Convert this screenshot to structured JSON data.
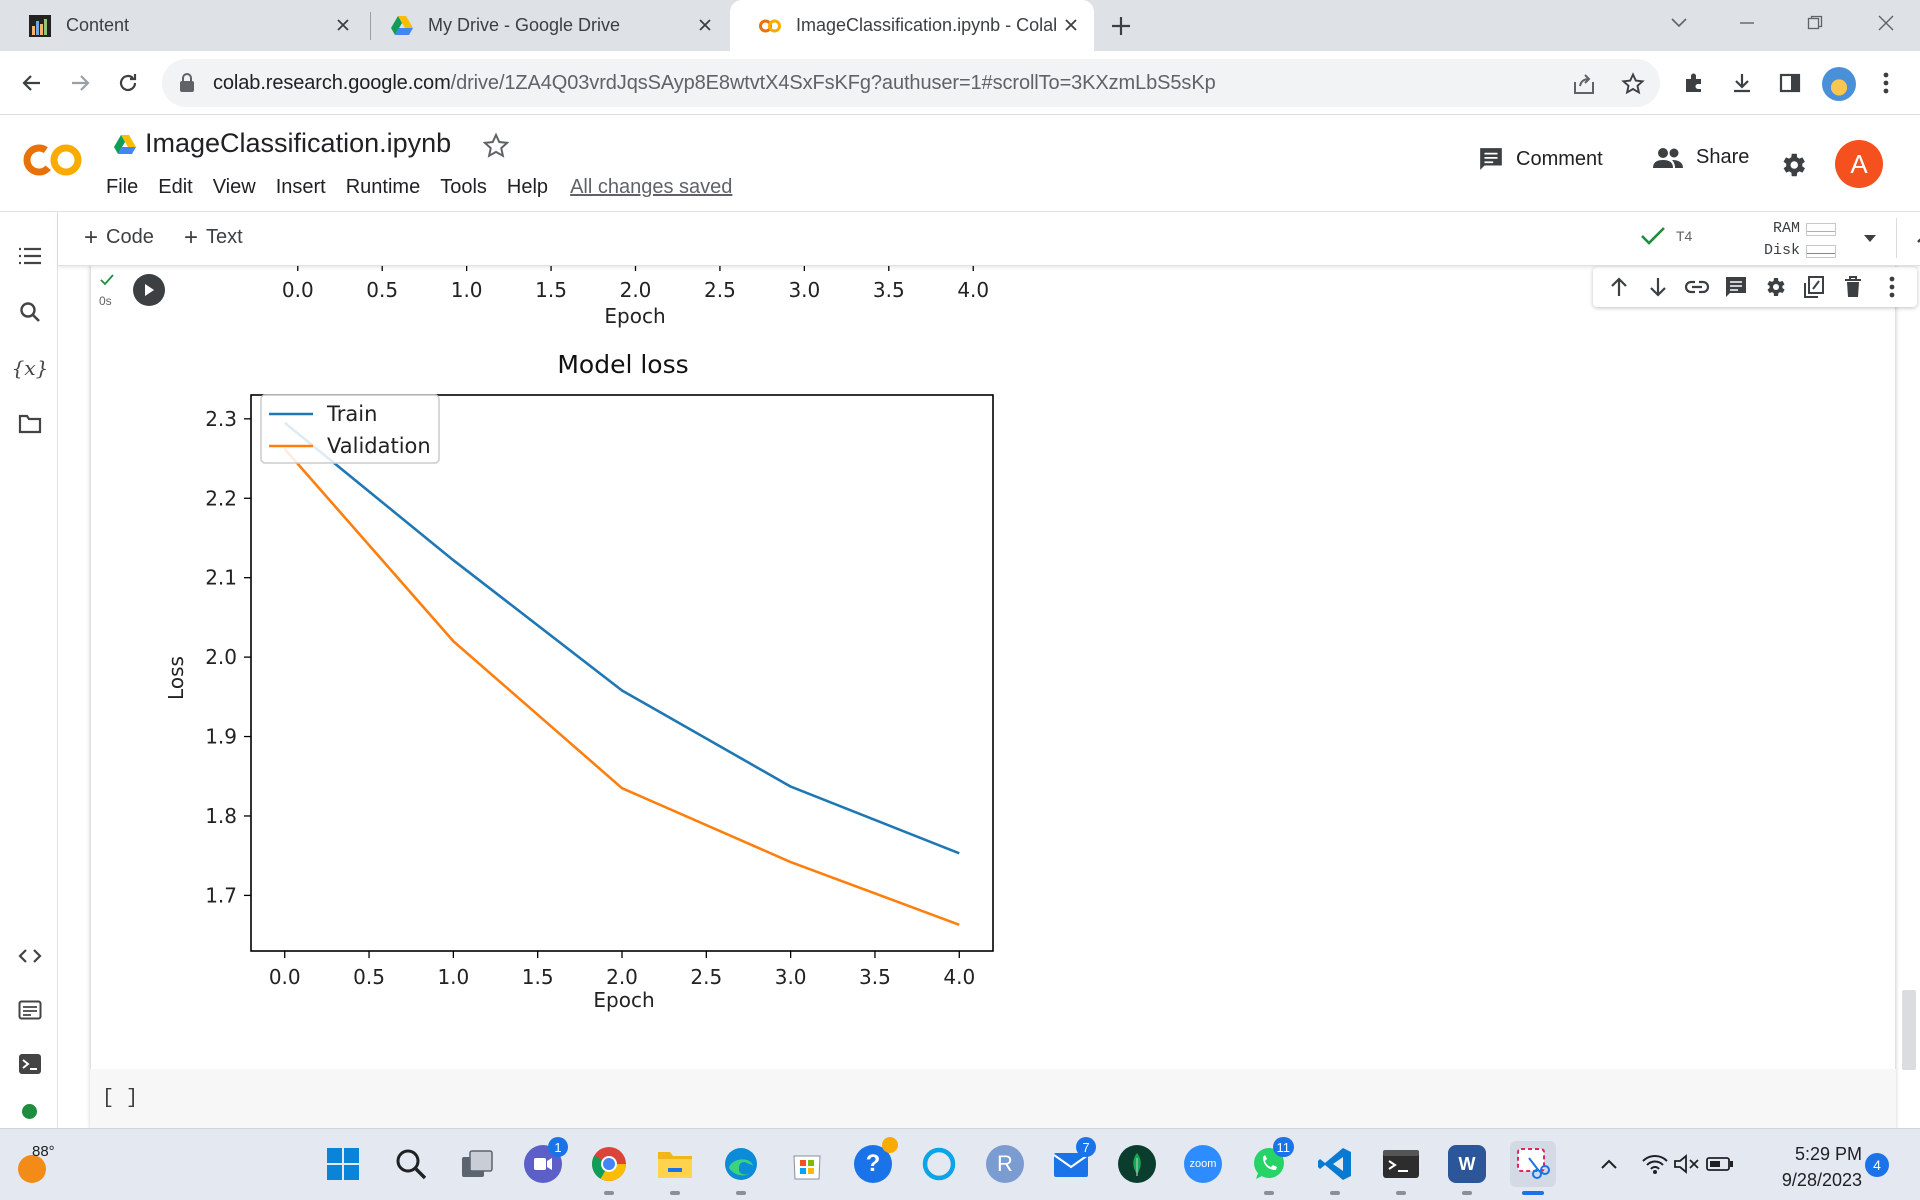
{
  "browser": {
    "tabs": [
      {
        "label": "Content",
        "icon": "bar-chart-favicon"
      },
      {
        "label": "My Drive - Google Drive",
        "icon": "google-drive-favicon"
      },
      {
        "label": "ImageClassification.ipynb - Colab",
        "icon": "colab-favicon",
        "active": true
      }
    ],
    "url_host": "colab.research.google.com",
    "url_path": "/drive/1ZA4Q03vrdJqsSAyp8E8wtvtX4SxFsKFg?authuser=1#scrollTo=3KXzmLbS5sKp"
  },
  "colab": {
    "notebook_title": "ImageClassification.ipynb",
    "menu": [
      "File",
      "Edit",
      "View",
      "Insert",
      "Runtime",
      "Tools",
      "Help"
    ],
    "save_status": "All changes saved",
    "comment_label": "Comment",
    "share_label": "Share",
    "avatar_letter": "A",
    "add_code_label": "Code",
    "add_text_label": "Text",
    "runtime_gpu": "T4",
    "ram_label": "RAM",
    "disk_label": "Disk",
    "exec_time": "0s",
    "empty_cell_prompt": "[ ]"
  },
  "colors": {
    "train": "#1f77b4",
    "validation": "#ff7f0e",
    "colab_orange": "#f9ab00",
    "avatar": "#f4511e"
  },
  "previous_plot_axis": {
    "ticks": [
      "0.0",
      "0.5",
      "1.0",
      "1.5",
      "2.0",
      "2.5",
      "3.0",
      "3.5",
      "4.0"
    ],
    "xlabel": "Epoch"
  },
  "chart_data": {
    "type": "line",
    "title": "Model loss",
    "xlabel": "Epoch",
    "ylabel": "Loss",
    "x": [
      0,
      1,
      2,
      3,
      4
    ],
    "xlim": [
      -0.2,
      4.2
    ],
    "ylim": [
      1.63,
      2.33
    ],
    "x_ticks": [
      "0.0",
      "0.5",
      "1.0",
      "1.5",
      "2.0",
      "2.5",
      "3.0",
      "3.5",
      "4.0"
    ],
    "y_ticks": [
      "1.7",
      "1.8",
      "1.9",
      "2.0",
      "2.1",
      "2.2",
      "2.3"
    ],
    "legend_position": "upper-left",
    "grid": false,
    "series": [
      {
        "name": "Train",
        "values": [
          2.295,
          2.122,
          1.958,
          1.837,
          1.753
        ]
      },
      {
        "name": "Validation",
        "values": [
          2.262,
          2.02,
          1.835,
          1.742,
          1.663
        ]
      }
    ]
  },
  "taskbar": {
    "weather_temp": "88°",
    "apps": [
      {
        "name": "start",
        "badge": ""
      },
      {
        "name": "search",
        "badge": ""
      },
      {
        "name": "task-view",
        "badge": ""
      },
      {
        "name": "teams-chat",
        "badge": "1"
      },
      {
        "name": "chrome",
        "badge": ""
      },
      {
        "name": "file-explorer",
        "badge": ""
      },
      {
        "name": "edge",
        "badge": ""
      },
      {
        "name": "microsoft-store",
        "badge": ""
      },
      {
        "name": "help",
        "badge": ""
      },
      {
        "name": "cortana",
        "badge": ""
      },
      {
        "name": "r-app",
        "badge": ""
      },
      {
        "name": "mail",
        "badge": "7"
      },
      {
        "name": "mongodb",
        "badge": ""
      },
      {
        "name": "zoom",
        "badge": ""
      },
      {
        "name": "whatsapp",
        "badge": "11"
      },
      {
        "name": "vscode",
        "badge": ""
      },
      {
        "name": "terminal",
        "badge": ""
      },
      {
        "name": "word",
        "badge": ""
      },
      {
        "name": "snipping-tool",
        "badge": ""
      }
    ],
    "zoom_label": "zoom",
    "r_label": "R",
    "word_label": "W",
    "time": "5:29 PM",
    "date": "9/28/2023",
    "notification_count": "4"
  }
}
